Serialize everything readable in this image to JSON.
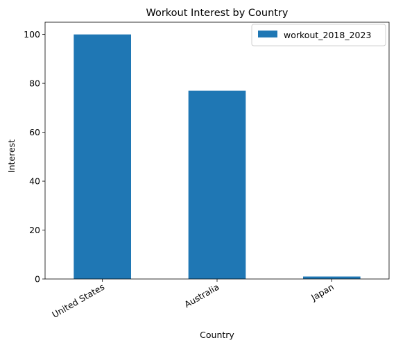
{
  "chart_data": {
    "type": "bar",
    "title": "Workout Interest by Country",
    "xlabel": "Country",
    "ylabel": "Interest",
    "categories": [
      "United States",
      "Australia",
      "Japan"
    ],
    "series": [
      {
        "name": "workout_2018_2023",
        "values": [
          100,
          77,
          1
        ]
      }
    ],
    "ylim": [
      0,
      105
    ],
    "yticks": [
      0,
      20,
      40,
      60,
      80,
      100
    ],
    "grid": false,
    "legend": "top-right",
    "colors": {
      "bar": "#1f77b4"
    }
  }
}
